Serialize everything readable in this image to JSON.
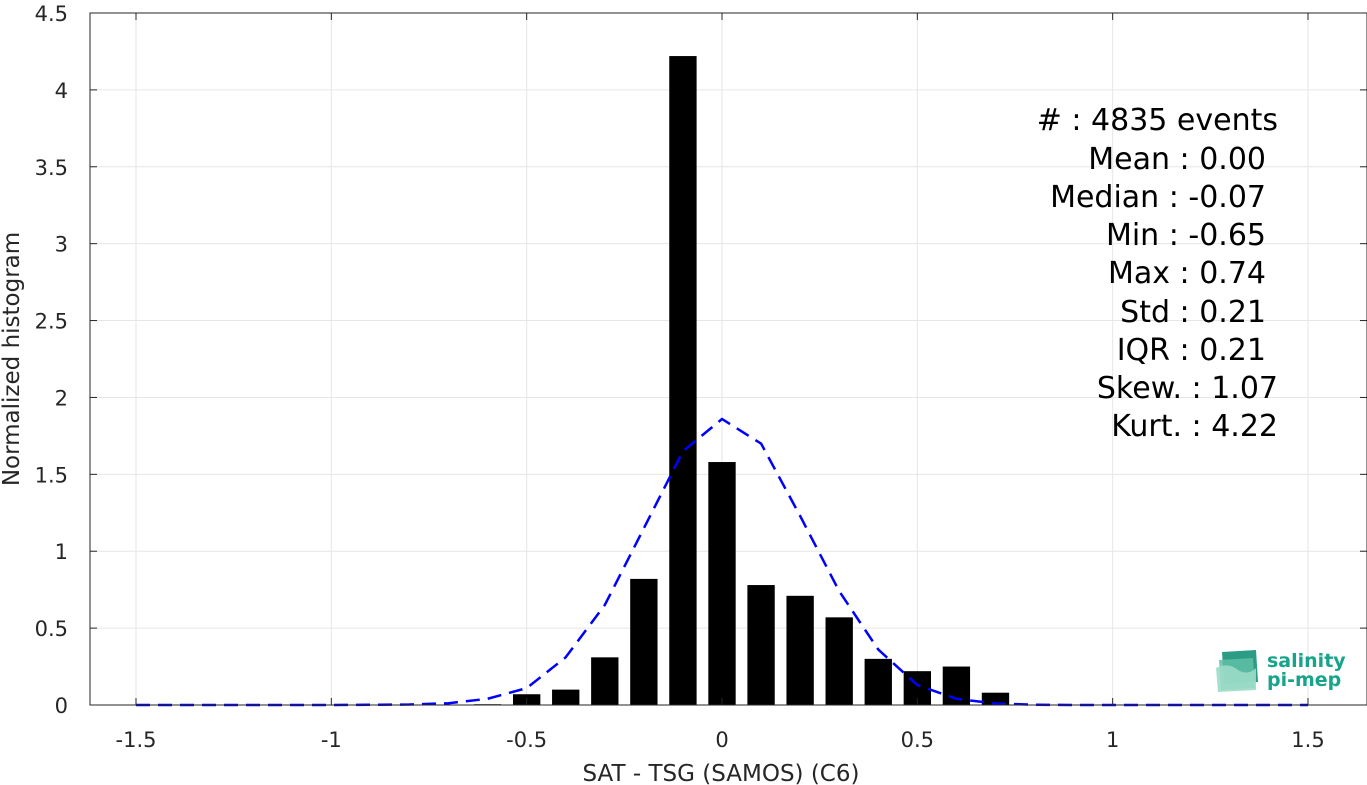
{
  "chart_data": {
    "type": "bar",
    "xlabel": "SAT - TSG (SAMOS) (C6)",
    "ylabel": "Normalized histogram",
    "xlim": [
      -1.5,
      1.5
    ],
    "ylim": [
      0,
      4.5
    ],
    "grid": true,
    "x_ticks": [
      "-1.5",
      "-1",
      "-0.5",
      "0",
      "0.5",
      "1",
      "1.5"
    ],
    "x_tick_values": [
      -1.5,
      -1,
      -0.5,
      0,
      0.5,
      1,
      1.5
    ],
    "y_ticks": [
      "0",
      "0.5",
      "1",
      "1.5",
      "2",
      "2.5",
      "3",
      "3.5",
      "4",
      "4.5"
    ],
    "y_tick_values": [
      0,
      0.5,
      1,
      1.5,
      2,
      2.5,
      3,
      3.5,
      4,
      4.5
    ],
    "bar_width": 0.07,
    "bars": {
      "x": [
        -0.6,
        -0.5,
        -0.4,
        -0.3,
        -0.2,
        -0.1,
        0.0,
        0.1,
        0.2,
        0.3,
        0.4,
        0.5,
        0.6,
        0.7
      ],
      "values": [
        0.005,
        0.07,
        0.1,
        0.31,
        0.82,
        4.22,
        1.58,
        0.78,
        0.71,
        0.57,
        0.3,
        0.22,
        0.25,
        0.08
      ],
      "color": "#000000"
    },
    "fit": {
      "x": [
        -1.5,
        -1.4,
        -1.3,
        -1.2,
        -1.1,
        -1.0,
        -0.9,
        -0.8,
        -0.7,
        -0.6,
        -0.5,
        -0.4,
        -0.3,
        -0.2,
        -0.1,
        0.0,
        0.1,
        0.2,
        0.3,
        0.4,
        0.5,
        0.6,
        0.7,
        0.8,
        0.9,
        1.0,
        1.1,
        1.2,
        1.3,
        1.4,
        1.5
      ],
      "values": [
        0,
        0,
        0,
        0,
        0,
        0,
        0.001,
        0.003,
        0.012,
        0.04,
        0.11,
        0.31,
        0.65,
        1.15,
        1.65,
        1.86,
        1.7,
        1.23,
        0.74,
        0.36,
        0.13,
        0.04,
        0.01,
        0.002,
        0,
        0,
        0,
        0,
        0,
        0,
        0
      ],
      "color": "#0000ff",
      "style": "dashed"
    },
    "stats": [
      "#  : 4835 events",
      "Mean : 0.00",
      "Median : -0.07",
      "Min : -0.65",
      "Max : 0.74",
      "Std : 0.21",
      "IQR : 0.21",
      "Skew. : 1.07",
      "Kurt. : 4.22"
    ]
  },
  "logo": {
    "line1": "salinity",
    "line2": "pi-mep",
    "color": "#17a48a"
  }
}
